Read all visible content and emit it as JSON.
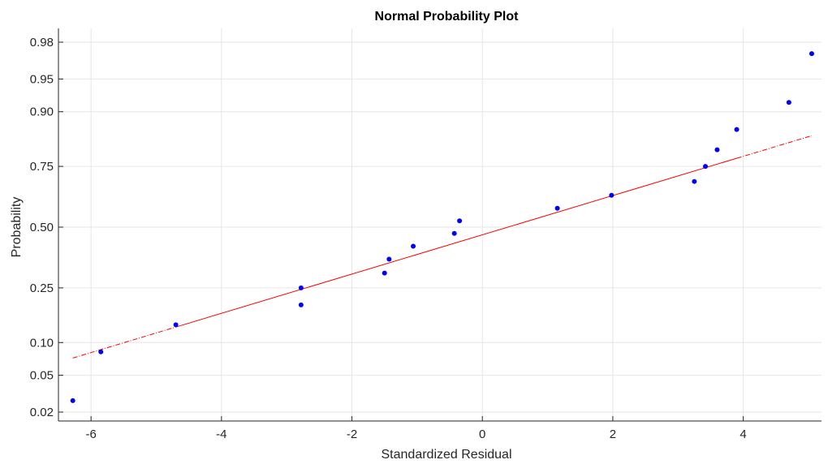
{
  "chart_data": {
    "type": "scatter",
    "title": "Normal Probability Plot",
    "xlabel": "Standardized Residual",
    "ylabel": "Probability",
    "xlim": [
      -6.5,
      5.2
    ],
    "x_ticks": [
      -6,
      -4,
      -2,
      0,
      2,
      4
    ],
    "x_tick_labels": [
      "-6",
      "-4",
      "-2",
      "0",
      "2",
      "4"
    ],
    "y_ticks": [
      0.02,
      0.05,
      0.1,
      0.25,
      0.5,
      0.75,
      0.9,
      0.95,
      0.98
    ],
    "y_tick_labels": [
      "0.02",
      "0.05",
      "0.10",
      "0.25",
      "0.50",
      "0.75",
      "0.90",
      "0.95",
      "0.98"
    ],
    "y_scale": "normal-probability",
    "grid": true,
    "colors": {
      "points": "#0000ff",
      "fit_line": "#ff0000"
    },
    "series": [
      {
        "values_x": [
          -6.28,
          -5.85,
          -4.7,
          -2.78,
          -2.78,
          -1.5,
          -1.43,
          -1.06,
          -0.43,
          -0.35,
          1.15,
          1.98,
          3.25,
          3.42,
          3.6,
          3.9,
          4.7,
          5.05
        ],
        "values_y": [
          0.027,
          0.083,
          0.139,
          0.25,
          0.194,
          0.305,
          0.361,
          0.416,
          0.472,
          0.528,
          0.583,
          0.638,
          0.694,
          0.75,
          0.805,
          0.861,
          0.917,
          0.973
        ]
      }
    ],
    "fit_line": {
      "x": [
        -6.28,
        5.05
      ],
      "y": [
        0.073,
        0.845
      ],
      "style": "solid-then-dashed"
    }
  }
}
